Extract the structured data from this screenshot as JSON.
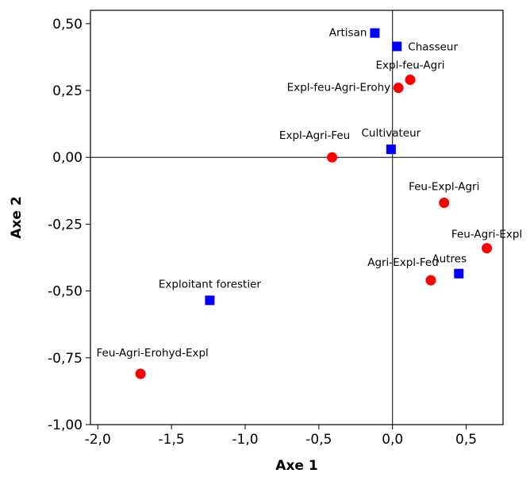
{
  "chart_data": {
    "type": "scatter",
    "xlabel": "Axe 1",
    "ylabel": "Axe 2",
    "xlim": [
      -2.05,
      0.75
    ],
    "ylim": [
      -1.0,
      0.55
    ],
    "x_ticks": [
      -2.0,
      -1.5,
      -1.0,
      -0.5,
      0.0,
      0.5
    ],
    "x_tick_labels": [
      "-2,0",
      "-1,5",
      "-1,0",
      "-0,5",
      "0,0",
      "0,5"
    ],
    "y_ticks": [
      0.5,
      0.25,
      0.0,
      -0.25,
      -0.5,
      -0.75,
      -1.0
    ],
    "y_tick_labels": [
      "0,50",
      "0,25",
      "0,00",
      "-0,25",
      "-0,50",
      "-0,75",
      "-1,00"
    ],
    "reference_lines": {
      "x": 0.0,
      "y": 0.0
    },
    "grid": false,
    "series": [
      {
        "marker": "square",
        "color": "#0000ff",
        "points": [
          {
            "label": "Artisan",
            "x": -0.12,
            "y": 0.465
          },
          {
            "label": "Chasseur",
            "x": 0.03,
            "y": 0.415
          },
          {
            "label": "Cultivateur",
            "x": -0.01,
            "y": 0.03
          },
          {
            "label": "Autres",
            "x": 0.45,
            "y": -0.435
          },
          {
            "label": "Exploitant forestier",
            "x": -1.24,
            "y": -0.535
          }
        ]
      },
      {
        "marker": "circle",
        "color": "#ff0000",
        "points": [
          {
            "label": "Expl-feu-Agri",
            "x": 0.12,
            "y": 0.29
          },
          {
            "label": "Expl-feu-Agri-Erohy",
            "x": 0.04,
            "y": 0.26
          },
          {
            "label": "Expl-Agri-Feu",
            "x": -0.41,
            "y": 0.0
          },
          {
            "label": "Feu-Expl-Agri",
            "x": 0.35,
            "y": -0.17
          },
          {
            "label": "Feu-Agri-Expl",
            "x": 0.64,
            "y": -0.34
          },
          {
            "label": "Agri-Expl-Feu",
            "x": 0.26,
            "y": -0.46
          },
          {
            "label": "Feu-Agri-Erohyd-Expl",
            "x": -1.71,
            "y": -0.81
          }
        ]
      }
    ]
  }
}
